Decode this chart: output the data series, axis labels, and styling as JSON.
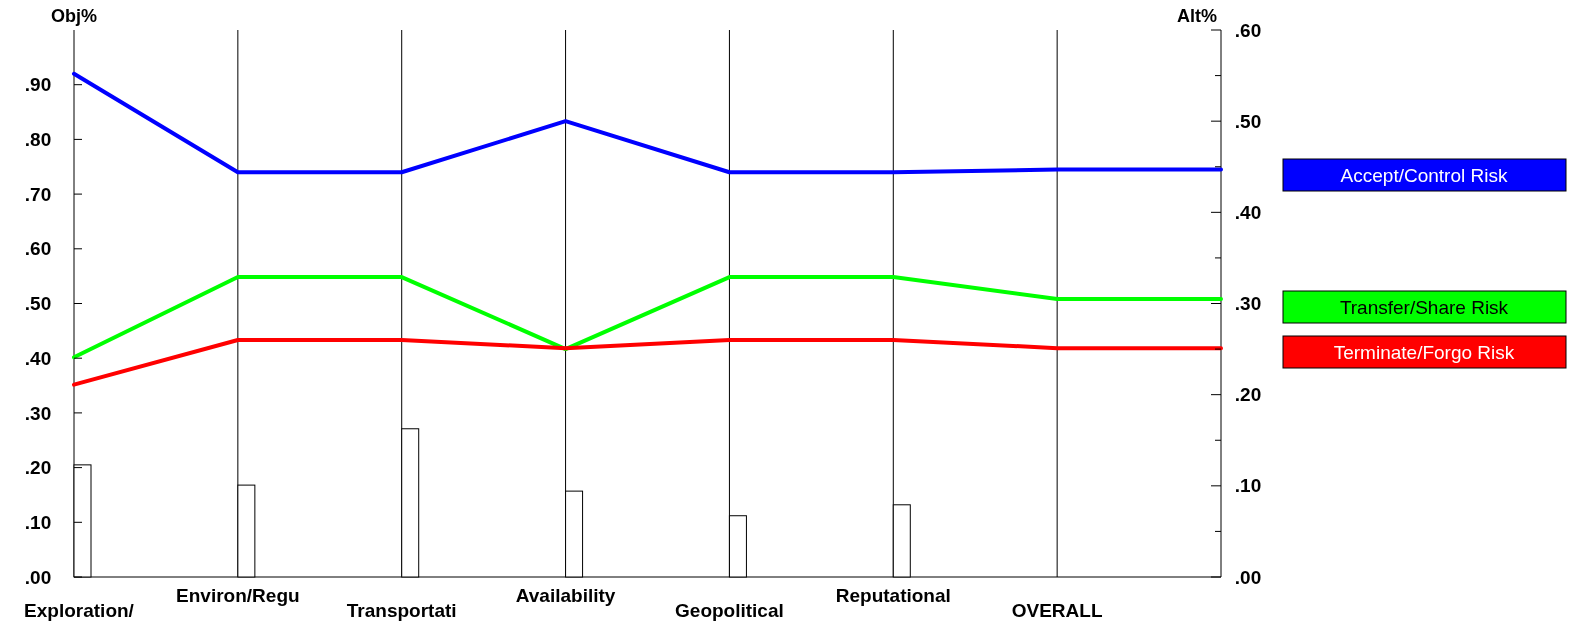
{
  "chart_data": {
    "type": "bar",
    "ylabel": "Obj%",
    "y2label": "Alt%",
    "categories": [
      "Exploration/",
      "Environ/Regu",
      "Transportati",
      "Availability",
      "Geopolitical",
      "Reputational",
      "OVERALL",
      null
    ],
    "series": [
      {
        "color": "#ffffff",
        "values": [
          0.205,
          0.168,
          0.271,
          0.157,
          0.112,
          0.132,
          null,
          null
        ]
      },
      {
        "type": "line",
        "axis": "y2",
        "name": "Accept/Control Risk",
        "color": "#0000ff",
        "values": [
          0.552,
          0.444,
          0.444,
          0.5,
          0.444,
          0.444,
          0.447,
          0.447
        ]
      },
      {
        "type": "line",
        "axis": "y2",
        "name": "Transfer/Share Risk",
        "color": "#00ff00",
        "values": [
          0.241,
          0.329,
          0.329,
          0.25,
          0.329,
          0.329,
          0.305,
          0.305
        ]
      },
      {
        "type": "line",
        "axis": "y2",
        "name": "Terminate/Forgo Risk",
        "color": "#ff0000",
        "values": [
          0.211,
          0.26,
          0.26,
          0.251,
          0.26,
          0.26,
          0.251,
          0.251
        ]
      }
    ],
    "ylim": [
      0,
      1
    ],
    "yticks": [
      {
        "value": 0,
        "label": ".00"
      },
      {
        "value": 0.1,
        "label": ".10"
      },
      {
        "value": 0.2,
        "label": ".20"
      },
      {
        "value": 0.3,
        "label": ".30"
      },
      {
        "value": 0.4,
        "label": ".40"
      },
      {
        "value": 0.5,
        "label": ".50"
      },
      {
        "value": 0.6,
        "label": ".60"
      },
      {
        "value": 0.7,
        "label": ".70"
      },
      {
        "value": 0.8,
        "label": ".80"
      },
      {
        "value": 0.9,
        "label": ".90"
      }
    ],
    "y2lim": [
      0,
      0.6
    ],
    "y2ticks": [
      {
        "value": 0,
        "label": ".00"
      },
      {
        "value": 0.05,
        "label": null
      },
      {
        "value": 0.1,
        "label": ".10"
      },
      {
        "value": 0.15,
        "label": null
      },
      {
        "value": 0.2,
        "label": ".20"
      },
      {
        "value": 0.25,
        "label": null
      },
      {
        "value": 0.3,
        "label": ".30"
      },
      {
        "value": 0.35,
        "label": null
      },
      {
        "value": 0.4,
        "label": ".40"
      },
      {
        "value": 0.45,
        "label": null
      },
      {
        "value": 0.5,
        "label": ".50"
      },
      {
        "value": 0.55,
        "label": null
      },
      {
        "value": 0.6,
        "label": ".60"
      }
    ],
    "grid": "x",
    "legend": "right"
  }
}
